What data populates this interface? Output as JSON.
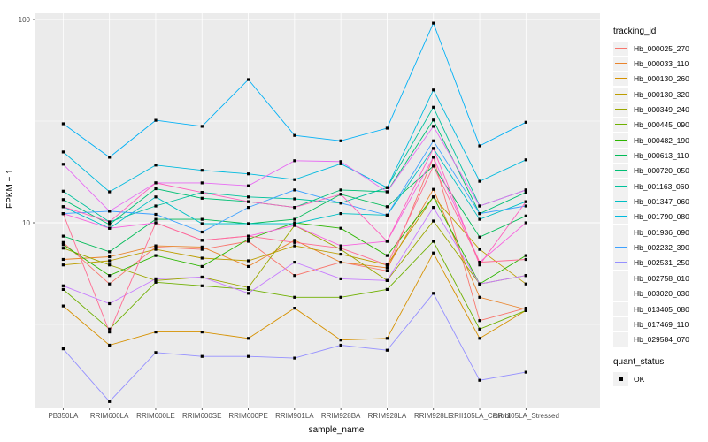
{
  "chart_data": {
    "type": "line",
    "title": "",
    "xlabel": "sample_name",
    "ylabel": "FPKM + 1",
    "y_scale": "log10",
    "ylim": [
      1.25,
      110
    ],
    "y_ticks": [
      {
        "label": "100",
        "value": 100
      },
      {
        "label": "10",
        "value": 10
      }
    ],
    "y_minor_breaks": [
      3.1623,
      31.623
    ],
    "grid": true,
    "legend_position": "right",
    "legend_title": "tracking_id",
    "point_marker": "black-square",
    "colors": {
      "panel_background": "#EBEBEB",
      "grid": "#FFFFFF",
      "tick_text": "#4D4D4D",
      "axis_text": "#000000",
      "point": "#000000"
    },
    "categories": [
      "PB350LA",
      "RRIM600LA",
      "RRIM600LE",
      "RRIM600SE",
      "RRIM600PE",
      "RRIM901LA",
      "RRIM928BA",
      "RRIM928LA",
      "RRIM928LE",
      "RRII105LA_Control",
      "RRII105LA_Stressed"
    ],
    "series": [
      {
        "name": "Hb_000025_270",
        "color": "#F8766D",
        "values": [
          8.0,
          5.0,
          7.6,
          7.4,
          8.1,
          5.5,
          6.4,
          5.8,
          21.0,
          3.3,
          3.8
        ]
      },
      {
        "name": "Hb_000033_110",
        "color": "#E9842C",
        "values": [
          6.6,
          6.8,
          7.7,
          7.6,
          6.1,
          8.2,
          6.4,
          6.0,
          14.6,
          4.3,
          3.75
        ]
      },
      {
        "name": "Hb_000130_260",
        "color": "#D69100",
        "values": [
          3.9,
          2.5,
          2.9,
          2.9,
          2.7,
          3.8,
          2.65,
          2.7,
          7.1,
          2.7,
          3.7
        ]
      },
      {
        "name": "Hb_000130_320",
        "color": "#BC9D00",
        "values": [
          6.2,
          6.5,
          7.4,
          6.7,
          6.5,
          7.7,
          7.0,
          6.2,
          13.4,
          7.4,
          5.0
        ]
      },
      {
        "name": "Hb_000349_240",
        "color": "#9CA700",
        "values": [
          7.5,
          6.2,
          5.2,
          5.4,
          4.8,
          9.7,
          7.4,
          5.2,
          10.2,
          5.0,
          5.5
        ]
      },
      {
        "name": "Hb_000445_090",
        "color": "#6FB000",
        "values": [
          4.7,
          3.0,
          5.1,
          4.9,
          4.7,
          4.3,
          4.3,
          4.7,
          8.1,
          3.0,
          3.7
        ]
      },
      {
        "name": "Hb_000482_190",
        "color": "#2CB600",
        "values": [
          7.8,
          5.5,
          6.9,
          6.1,
          8.3,
          10.0,
          9.4,
          6.9,
          13.4,
          5.0,
          6.9
        ]
      },
      {
        "name": "Hb_000613_110",
        "color": "#00BB57",
        "values": [
          8.6,
          7.2,
          10.4,
          10.4,
          9.9,
          10.4,
          13.8,
          12.0,
          19.0,
          8.5,
          10.8
        ]
      },
      {
        "name": "Hb_000720_050",
        "color": "#00BF74",
        "values": [
          13.0,
          9.8,
          14.7,
          13.2,
          12.7,
          11.9,
          14.5,
          14.2,
          32.0,
          11.1,
          14.1
        ]
      },
      {
        "name": "Hb_001163_060",
        "color": "#00C19C",
        "values": [
          14.3,
          10.1,
          12.1,
          14.1,
          13.4,
          13.1,
          12.5,
          14.9,
          37.0,
          12.1,
          14.5
        ]
      },
      {
        "name": "Hb_001347_060",
        "color": "#00BFC4",
        "values": [
          12.0,
          9.4,
          13.4,
          9.9,
          9.9,
          9.9,
          11.1,
          10.9,
          23.2,
          10.4,
          12.7
        ]
      },
      {
        "name": "Hb_001790_080",
        "color": "#00BADE",
        "values": [
          22.3,
          14.2,
          19.2,
          18.1,
          17.4,
          16.3,
          19.5,
          14.9,
          45.0,
          16.0,
          20.4
        ]
      },
      {
        "name": "Hb_001936_090",
        "color": "#00B0F6",
        "values": [
          30.7,
          21.0,
          31.9,
          29.8,
          50.6,
          26.9,
          25.3,
          29.2,
          96.0,
          23.9,
          31.2
        ]
      },
      {
        "name": "Hb_002232_390",
        "color": "#3DA1FF",
        "values": [
          11.1,
          11.4,
          11.0,
          9.0,
          11.9,
          14.5,
          12.5,
          10.9,
          25.3,
          11.1,
          12.1
        ]
      },
      {
        "name": "Hb_002531_250",
        "color": "#9590FF",
        "values": [
          2.4,
          1.32,
          2.3,
          2.2,
          2.2,
          2.16,
          2.5,
          2.36,
          4.5,
          1.68,
          1.84
        ]
      },
      {
        "name": "Hb_002758_010",
        "color": "#C77CFF",
        "values": [
          4.9,
          4.0,
          5.3,
          5.4,
          4.5,
          6.4,
          5.3,
          5.2,
          11.9,
          5.0,
          5.5
        ]
      },
      {
        "name": "Hb_003020_030",
        "color": "#E76BF3",
        "values": [
          19.4,
          11.4,
          15.7,
          15.7,
          15.2,
          20.2,
          20.0,
          14.2,
          29.8,
          12.1,
          14.5
        ]
      },
      {
        "name": "Hb_013405_080",
        "color": "#F863DF",
        "values": [
          11.1,
          9.4,
          10.0,
          8.2,
          8.6,
          9.7,
          7.7,
          8.1,
          21.0,
          6.4,
          10.0
        ]
      },
      {
        "name": "Hb_017469_110",
        "color": "#FF61BF",
        "values": [
          12.0,
          10.1,
          15.7,
          14.1,
          12.7,
          11.9,
          13.8,
          8.1,
          23.2,
          6.2,
          12.7
        ]
      },
      {
        "name": "Hb_029584_070",
        "color": "#FF6C92",
        "values": [
          11.1,
          2.9,
          10.0,
          8.2,
          8.6,
          8.0,
          7.5,
          6.2,
          19.0,
          6.4,
          6.6
        ]
      }
    ],
    "quant_legend": {
      "title": "quant_status",
      "items": [
        {
          "label": "OK",
          "marker": "black-square"
        }
      ]
    }
  }
}
